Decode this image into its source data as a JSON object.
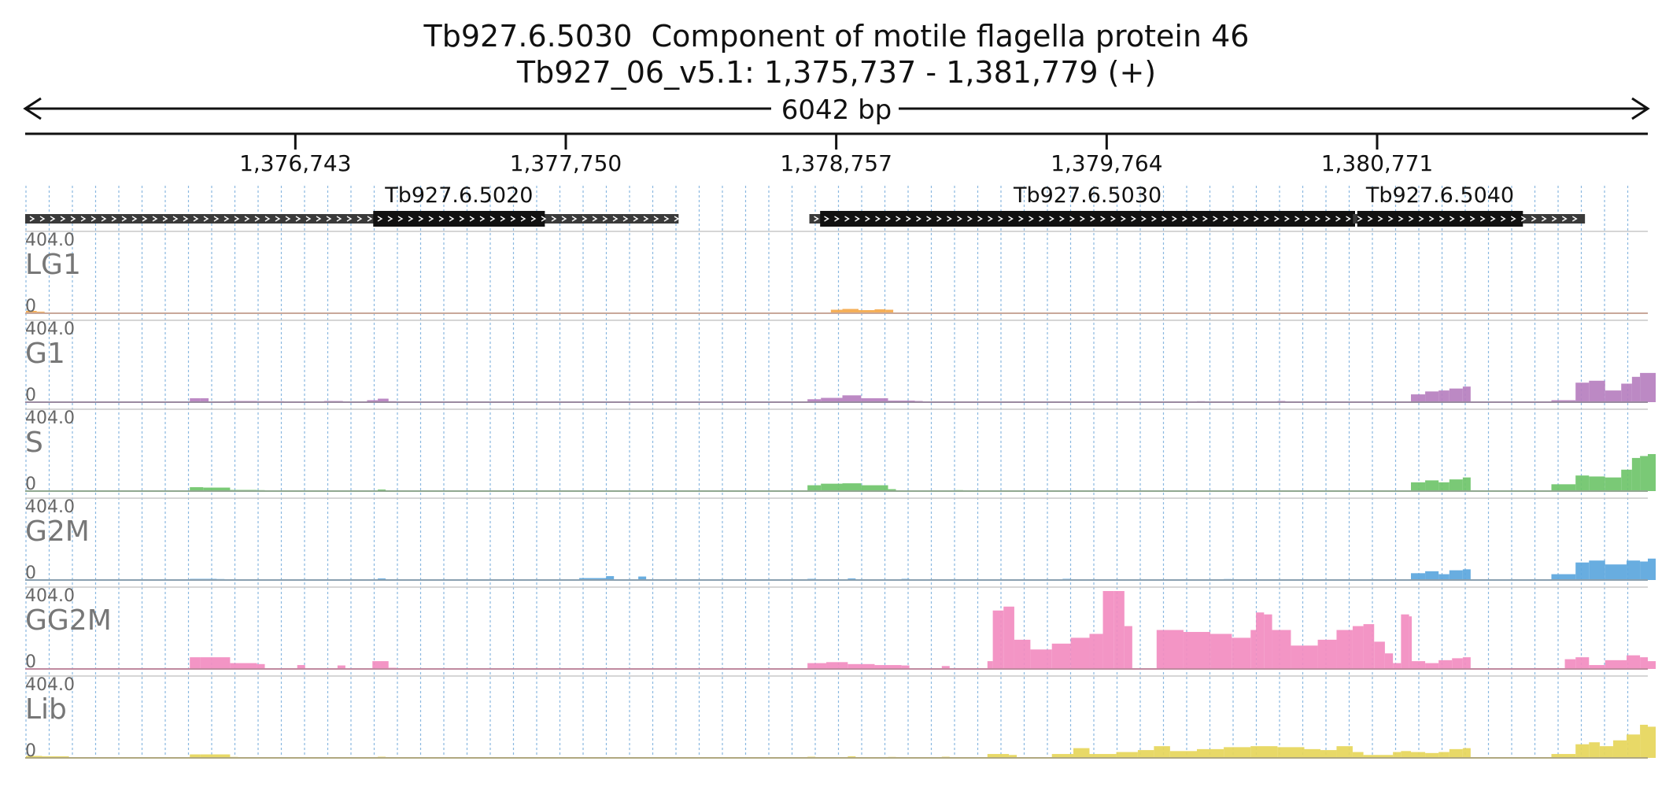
{
  "header": {
    "title": "Tb927.6.5030  Component of motile flagella protein 46",
    "locus": "Tb927_06_v5.1: 1,375,737 - 1,381,779 (+)",
    "span_label": "6042 bp"
  },
  "region": {
    "start": 1375737,
    "end": 1381779
  },
  "axis_ticks": [
    {
      "pos": 1376743,
      "label": "1,376,743"
    },
    {
      "pos": 1377750,
      "label": "1,377,750"
    },
    {
      "pos": 1378757,
      "label": "1,378,757"
    },
    {
      "pos": 1379764,
      "label": "1,379,764"
    },
    {
      "pos": 1380771,
      "label": "1,380,771"
    }
  ],
  "genes": [
    {
      "name": "Tb927.6.5020",
      "start": 1375737,
      "end": 1378170,
      "cds_start": 1377033,
      "cds_end": 1377672
    },
    {
      "name": "Tb927.6.5030",
      "start": 1378657,
      "end": 1380689,
      "cds_start": 1378697,
      "cds_end": 1380689
    },
    {
      "name": "Tb927.6.5040",
      "start": 1380681,
      "end": 1381545,
      "cds_start": 1380697,
      "cds_end": 1381314
    }
  ],
  "tracks": [
    {
      "name": "LG1",
      "max_label": "404.0",
      "min_label": "0",
      "color": "#f4a84a",
      "baseline": "#c9a89a"
    },
    {
      "name": "G1",
      "max_label": "404.0",
      "min_label": "0",
      "color": "#b67fbf",
      "baseline": "#9a8aa0"
    },
    {
      "name": "S",
      "max_label": "404.0",
      "min_label": "0",
      "color": "#6fc46a",
      "baseline": "#90a890"
    },
    {
      "name": "G2M",
      "max_label": "404.0",
      "min_label": "0",
      "color": "#5ba6dd",
      "baseline": "#8aa0b0"
    },
    {
      "name": "GG2M",
      "max_label": "404.0",
      "min_label": "0",
      "color": "#f28cc0",
      "baseline": "#c08aa0"
    },
    {
      "name": "Lib",
      "max_label": "404.0",
      "min_label": "0",
      "color": "#e6d65a",
      "baseline": "#b0a880"
    }
  ],
  "chart_data": {
    "type": "area",
    "ylim": [
      0,
      404.0
    ],
    "x_unit": "bp",
    "series": [
      {
        "name": "LG1",
        "values": [
          [
            1375740,
            12
          ],
          [
            1375780,
            8
          ],
          [
            1378737,
            18
          ],
          [
            1378780,
            22
          ],
          [
            1378840,
            16
          ],
          [
            1378900,
            20
          ],
          [
            1378940,
            18
          ]
        ]
      },
      {
        "name": "G1",
        "values": [
          [
            1376350,
            20
          ],
          [
            1376390,
            20
          ],
          [
            1376420,
            4
          ],
          [
            1376500,
            6
          ],
          [
            1376600,
            5
          ],
          [
            1376700,
            4
          ],
          [
            1376850,
            6
          ],
          [
            1376920,
            3
          ],
          [
            1377010,
            10
          ],
          [
            1377050,
            18
          ],
          [
            1377090,
            5
          ],
          [
            1378650,
            15
          ],
          [
            1378700,
            22
          ],
          [
            1378780,
            35
          ],
          [
            1378850,
            20
          ],
          [
            1378950,
            8
          ],
          [
            1379050,
            6
          ],
          [
            1379200,
            4
          ],
          [
            1379800,
            4
          ],
          [
            1380100,
            5
          ],
          [
            1380400,
            6
          ],
          [
            1380650,
            4
          ],
          [
            1380897,
            40
          ],
          [
            1380950,
            55
          ],
          [
            1381000,
            60
          ],
          [
            1381040,
            70
          ],
          [
            1381090,
            80
          ],
          [
            1381420,
            10
          ],
          [
            1381510,
            100
          ],
          [
            1381560,
            110
          ],
          [
            1381620,
            60
          ],
          [
            1381680,
            95
          ],
          [
            1381720,
            130
          ],
          [
            1381750,
            150
          ],
          [
            1381779,
            150
          ]
        ]
      },
      {
        "name": "S",
        "values": [
          [
            1376350,
            20
          ],
          [
            1376400,
            18
          ],
          [
            1376500,
            6
          ],
          [
            1376600,
            5
          ],
          [
            1376800,
            4
          ],
          [
            1377050,
            8
          ],
          [
            1378650,
            30
          ],
          [
            1378700,
            38
          ],
          [
            1378780,
            40
          ],
          [
            1378850,
            30
          ],
          [
            1378950,
            10
          ],
          [
            1379200,
            5
          ],
          [
            1380100,
            4
          ],
          [
            1380650,
            4
          ],
          [
            1380897,
            45
          ],
          [
            1380950,
            55
          ],
          [
            1381000,
            45
          ],
          [
            1381040,
            60
          ],
          [
            1381090,
            70
          ],
          [
            1381420,
            35
          ],
          [
            1381510,
            80
          ],
          [
            1381560,
            75
          ],
          [
            1381620,
            70
          ],
          [
            1381680,
            110
          ],
          [
            1381720,
            170
          ],
          [
            1381750,
            180
          ],
          [
            1381779,
            190
          ]
        ]
      },
      {
        "name": "G2M",
        "values": [
          [
            1376350,
            6
          ],
          [
            1376450,
            5
          ],
          [
            1376600,
            4
          ],
          [
            1377050,
            8
          ],
          [
            1377800,
            10
          ],
          [
            1377900,
            20
          ],
          [
            1378020,
            18
          ],
          [
            1378650,
            6
          ],
          [
            1378800,
            8
          ],
          [
            1379000,
            6
          ],
          [
            1379600,
            6
          ],
          [
            1380200,
            5
          ],
          [
            1380650,
            4
          ],
          [
            1380897,
            35
          ],
          [
            1380950,
            45
          ],
          [
            1381000,
            30
          ],
          [
            1381040,
            50
          ],
          [
            1381090,
            55
          ],
          [
            1381420,
            30
          ],
          [
            1381510,
            90
          ],
          [
            1381560,
            100
          ],
          [
            1381620,
            80
          ],
          [
            1381700,
            100
          ],
          [
            1381750,
            95
          ],
          [
            1381779,
            110
          ]
        ]
      },
      {
        "name": "GG2M",
        "values": [
          [
            1375900,
            3
          ],
          [
            1376100,
            4
          ],
          [
            1376350,
            60
          ],
          [
            1376390,
            60
          ],
          [
            1376500,
            30
          ],
          [
            1376600,
            25
          ],
          [
            1376750,
            20
          ],
          [
            1376900,
            18
          ],
          [
            1377030,
            40
          ],
          [
            1377060,
            40
          ],
          [
            1377090,
            6
          ],
          [
            1378650,
            30
          ],
          [
            1378720,
            35
          ],
          [
            1378800,
            25
          ],
          [
            1378900,
            20
          ],
          [
            1379000,
            18
          ],
          [
            1379150,
            15
          ],
          [
            1379320,
            40
          ],
          [
            1379340,
            300
          ],
          [
            1379380,
            320
          ],
          [
            1379420,
            150
          ],
          [
            1379480,
            100
          ],
          [
            1379560,
            130
          ],
          [
            1379630,
            160
          ],
          [
            1379700,
            180
          ],
          [
            1379750,
            400
          ],
          [
            1379790,
            400
          ],
          [
            1379830,
            220
          ],
          [
            1379950,
            200
          ],
          [
            1380050,
            190
          ],
          [
            1380150,
            180
          ],
          [
            1380230,
            160
          ],
          [
            1380300,
            200
          ],
          [
            1380320,
            290
          ],
          [
            1380350,
            280
          ],
          [
            1380380,
            200
          ],
          [
            1380450,
            120
          ],
          [
            1380550,
            150
          ],
          [
            1380620,
            200
          ],
          [
            1380680,
            220
          ],
          [
            1380720,
            230
          ],
          [
            1380760,
            140
          ],
          [
            1380800,
            80
          ],
          [
            1380830,
            30
          ],
          [
            1380860,
            280
          ],
          [
            1380890,
            270
          ],
          [
            1380900,
            40
          ],
          [
            1380950,
            30
          ],
          [
            1381000,
            45
          ],
          [
            1381050,
            55
          ],
          [
            1381090,
            60
          ],
          [
            1381470,
            50
          ],
          [
            1381510,
            60
          ],
          [
            1381560,
            20
          ],
          [
            1381620,
            45
          ],
          [
            1381700,
            70
          ],
          [
            1381750,
            60
          ],
          [
            1381779,
            40
          ]
        ]
      },
      {
        "name": "Lib",
        "values": [
          [
            1375740,
            10
          ],
          [
            1375800,
            8
          ],
          [
            1375900,
            4
          ],
          [
            1376100,
            4
          ],
          [
            1376350,
            18
          ],
          [
            1376390,
            18
          ],
          [
            1376500,
            5
          ],
          [
            1376700,
            4
          ],
          [
            1377050,
            6
          ],
          [
            1378650,
            6
          ],
          [
            1378800,
            8
          ],
          [
            1378950,
            5
          ],
          [
            1379150,
            6
          ],
          [
            1379320,
            20
          ],
          [
            1379400,
            15
          ],
          [
            1379560,
            20
          ],
          [
            1379640,
            50
          ],
          [
            1379700,
            20
          ],
          [
            1379800,
            30
          ],
          [
            1379880,
            40
          ],
          [
            1379940,
            60
          ],
          [
            1380000,
            35
          ],
          [
            1380100,
            45
          ],
          [
            1380200,
            55
          ],
          [
            1380300,
            60
          ],
          [
            1380400,
            55
          ],
          [
            1380500,
            45
          ],
          [
            1380560,
            40
          ],
          [
            1380620,
            60
          ],
          [
            1380680,
            30
          ],
          [
            1380720,
            15
          ],
          [
            1380830,
            30
          ],
          [
            1380860,
            35
          ],
          [
            1380897,
            30
          ],
          [
            1380950,
            25
          ],
          [
            1381000,
            30
          ],
          [
            1381040,
            45
          ],
          [
            1381090,
            50
          ],
          [
            1381420,
            20
          ],
          [
            1381510,
            70
          ],
          [
            1381560,
            80
          ],
          [
            1381600,
            60
          ],
          [
            1381650,
            90
          ],
          [
            1381700,
            120
          ],
          [
            1381750,
            170
          ],
          [
            1381779,
            160
          ]
        ]
      }
    ]
  }
}
